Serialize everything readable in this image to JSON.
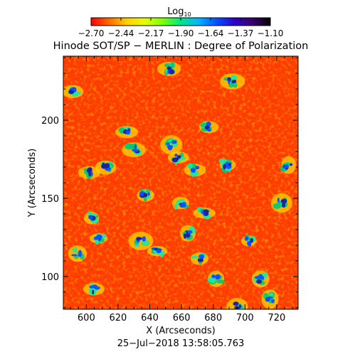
{
  "colorbar": {
    "label_base": "Log",
    "label_sub": "10",
    "ticks": [
      "−2.70",
      "−2.44",
      "−2.17",
      "−1.90",
      "−1.64",
      "−1.37",
      "−1.10"
    ],
    "colors": [
      "#ff0000",
      "#ff6a00",
      "#ffd000",
      "#e6ff00",
      "#7bff00",
      "#00e68c",
      "#00b4ff",
      "#0050ff",
      "#3000c8",
      "#3a006a",
      "#000000"
    ]
  },
  "title": "Hinode SOT/SP − MERLIN : Degree of Polarization",
  "x_axis": {
    "label": "X (Arcseconds)",
    "ticks": [
      "600",
      "620",
      "640",
      "660",
      "680",
      "700",
      "720"
    ]
  },
  "y_axis": {
    "label": "Y (Arcseconds)",
    "ticks": [
      "100",
      "150",
      "200"
    ]
  },
  "timestamp": "25−Jul−2018 13:58:05.763",
  "map": {
    "background_color": "#ff3a00",
    "x_range": [
      585.5,
      733.5
    ],
    "y_range": [
      79,
      241
    ]
  }
}
